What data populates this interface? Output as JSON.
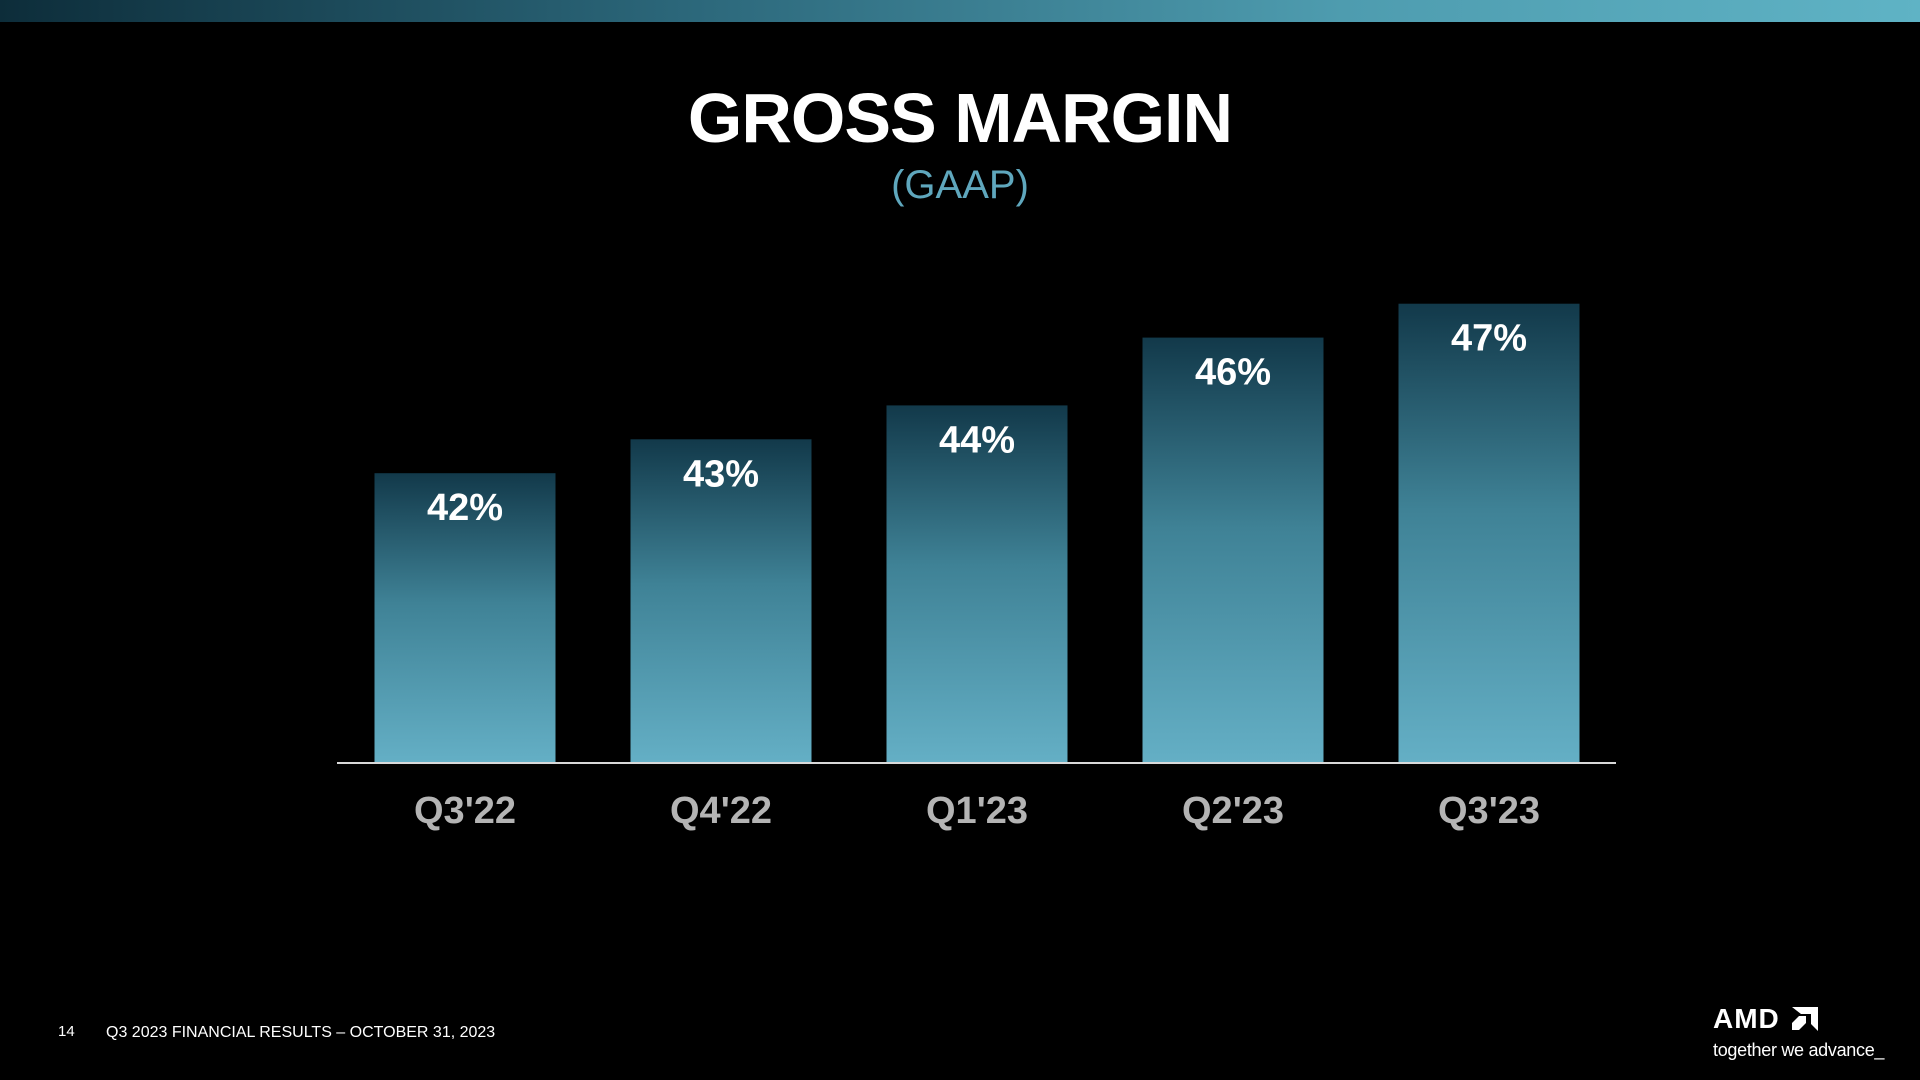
{
  "slide": {
    "title": "GROSS MARGIN",
    "subtitle": "(GAAP)",
    "page_number": "14",
    "footer": "Q3 2023 FINANCIAL RESULTS – OCTOBER 31, 2023"
  },
  "logo": {
    "wordmark": "AMD",
    "tagline": "together we advance_"
  },
  "colors": {
    "bar_top": "#12394a",
    "bar_bottom": "#64afc5",
    "category_label": "#b4b4b4",
    "value_label": "#ffffff",
    "subtitle": "#5fa7bd",
    "accent_bar": "#4e9caf"
  },
  "chart_data": {
    "type": "bar",
    "title": "GROSS MARGIN",
    "subtitle": "(GAAP)",
    "categories": [
      "Q3'22",
      "Q4'22",
      "Q1'23",
      "Q2'23",
      "Q3'23"
    ],
    "values": [
      42,
      43,
      44,
      46,
      47
    ],
    "value_labels": [
      "42%",
      "43%",
      "44%",
      "46%",
      "47%"
    ],
    "unit": "%",
    "xlabel": "",
    "ylabel": "",
    "grid": false,
    "legend": "none"
  }
}
